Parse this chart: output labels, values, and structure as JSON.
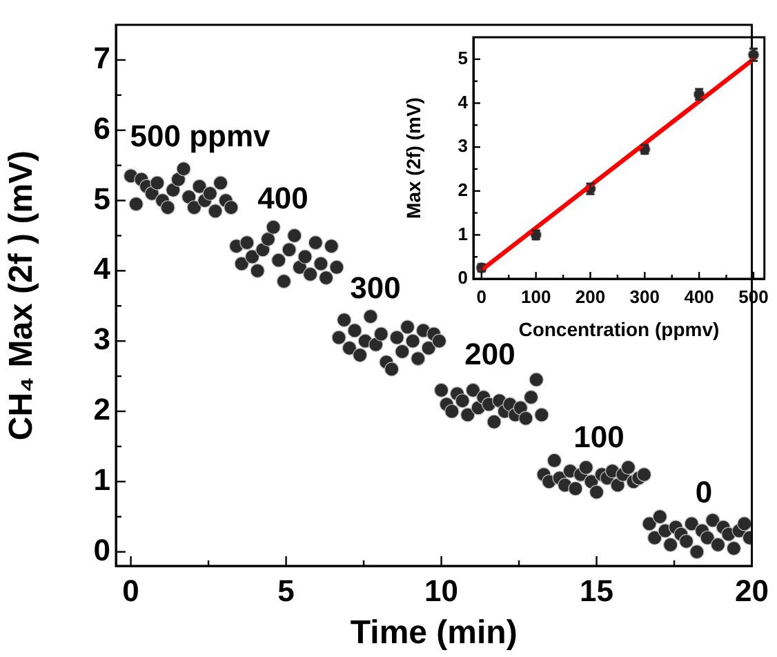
{
  "chart_data": [
    {
      "type": "scatter",
      "xlabel": "Time (min)",
      "ylabel": "CH₄ Max (2f ) (mV)",
      "xlim": [
        -0.48,
        20
      ],
      "ylim": [
        -0.2,
        7.5
      ],
      "xticks": [
        0,
        {
          "value": 2.5,
          "label": null
        },
        5,
        {
          "value": 7.5,
          "label": null
        },
        10,
        {
          "value": 12.5,
          "label": null
        },
        15,
        {
          "value": 17.5,
          "label": null
        },
        20
      ],
      "yticks": [
        0,
        {
          "value": 0.5,
          "label": null
        },
        1,
        {
          "value": 1.5,
          "label": null
        },
        2,
        {
          "value": 2.5,
          "label": null
        },
        3,
        {
          "value": 3.5,
          "label": null
        },
        4,
        {
          "value": 4.5,
          "label": null
        },
        5,
        {
          "value": 5.5,
          "label": null
        },
        6,
        {
          "value": 6.5,
          "label": null
        },
        7
      ],
      "annotations": [
        "500 ppmv",
        "400",
        "300",
        "200",
        "100",
        "0"
      ],
      "series": [
        {
          "color": "#2a2a2a",
          "marker": "circle",
          "x": [
            0,
            0.17,
            0.34,
            0.51,
            0.68,
            0.85,
            1.02,
            1.19,
            1.36,
            1.53,
            1.7,
            1.87,
            2.04,
            2.21,
            2.38,
            2.55,
            2.72,
            2.89,
            3.06,
            3.23,
            3.4,
            3.57,
            3.74,
            3.91,
            4.08,
            4.25,
            4.42,
            4.59,
            4.76,
            4.93,
            5.1,
            5.27,
            5.44,
            5.61,
            5.78,
            5.95,
            6.12,
            6.29,
            6.46,
            6.63,
            6.7,
            6.87,
            7.04,
            7.21,
            7.38,
            7.55,
            7.72,
            7.89,
            8.06,
            8.23,
            8.4,
            8.57,
            8.74,
            8.91,
            9.08,
            9.25,
            9.42,
            9.59,
            9.76,
            9.93,
            10,
            10.17,
            10.34,
            10.51,
            10.68,
            10.85,
            11.02,
            11.19,
            11.36,
            11.53,
            11.7,
            11.87,
            12.04,
            12.21,
            12.38,
            12.55,
            12.72,
            12.89,
            13.06,
            13.23,
            13.3,
            13.47,
            13.64,
            13.81,
            13.98,
            14.15,
            14.32,
            14.49,
            14.66,
            14.83,
            15,
            15.17,
            15.34,
            15.51,
            15.68,
            15.85,
            16.02,
            16.19,
            16.36,
            16.53,
            16.7,
            16.87,
            17.04,
            17.21,
            17.38,
            17.55,
            17.72,
            17.89,
            18.06,
            18.23,
            18.4,
            18.57,
            18.74,
            18.91,
            19.08,
            19.25,
            19.42,
            19.59,
            19.76,
            19.93
          ],
          "values": [
            5.35,
            4.95,
            5.3,
            5.2,
            5.1,
            5.25,
            5.0,
            4.9,
            5.15,
            5.3,
            5.45,
            5.05,
            4.9,
            5.2,
            5.0,
            5.1,
            4.85,
            5.25,
            5.0,
            4.9,
            4.35,
            4.1,
            4.4,
            4.2,
            4.0,
            4.3,
            4.45,
            4.62,
            4.15,
            3.85,
            4.3,
            4.5,
            4.05,
            4.2,
            3.95,
            4.4,
            4.1,
            3.9,
            4.35,
            4.05,
            3.05,
            3.3,
            2.9,
            3.15,
            2.8,
            3.0,
            3.35,
            2.95,
            3.1,
            2.7,
            2.6,
            3.05,
            2.85,
            3.2,
            3.0,
            2.75,
            3.15,
            2.9,
            3.1,
            3.0,
            2.3,
            2.1,
            2.0,
            2.25,
            2.15,
            1.95,
            2.3,
            2.05,
            2.2,
            2.1,
            1.85,
            2.15,
            2.0,
            2.1,
            1.95,
            2.05,
            1.9,
            2.2,
            2.45,
            1.95,
            1.1,
            1.0,
            1.3,
            1.05,
            0.95,
            1.15,
            0.9,
            1.1,
            1.2,
            1.0,
            0.85,
            1.1,
            1.05,
            1.15,
            0.95,
            1.1,
            1.2,
            1.0,
            1.05,
            1.1,
            0.4,
            0.2,
            0.5,
            0.3,
            0.1,
            0.35,
            0.25,
            0.15,
            0.4,
            0.0,
            0.3,
            0.2,
            0.45,
            0.1,
            0.35,
            0.25,
            0.05,
            0.3,
            0.4,
            0.2
          ]
        }
      ]
    },
    {
      "type": "scatter",
      "xlabel": "Concentration (ppmv)",
      "ylabel": "Max (2f) (mV)",
      "xlim": [
        -15,
        520
      ],
      "ylim": [
        0,
        5.5
      ],
      "xticks": [
        0,
        {
          "value": 50,
          "label": null
        },
        100,
        {
          "value": 150,
          "label": null
        },
        200,
        {
          "value": 250,
          "label": null
        },
        300,
        {
          "value": 350,
          "label": null
        },
        400,
        {
          "value": 450,
          "label": null
        },
        500
      ],
      "yticks": [
        0,
        {
          "value": 0.5,
          "label": null
        },
        1,
        {
          "value": 1.5,
          "label": null
        },
        2,
        {
          "value": 2.5,
          "label": null
        },
        3,
        {
          "value": 3.5,
          "label": null
        },
        4,
        {
          "value": 4.5,
          "label": null
        },
        5
      ],
      "series": [
        {
          "color": "#2a2a2a",
          "marker": "circle",
          "x": [
            0,
            100,
            200,
            300,
            400,
            500
          ],
          "values": [
            0.25,
            1.0,
            2.05,
            2.95,
            4.2,
            5.1
          ],
          "errors": [
            0.08,
            0.1,
            0.12,
            0.1,
            0.12,
            0.14
          ]
        },
        {
          "type": "line",
          "color": "#ff0000",
          "x": [
            0,
            500
          ],
          "values": [
            0.2,
            5.0
          ]
        }
      ]
    }
  ]
}
